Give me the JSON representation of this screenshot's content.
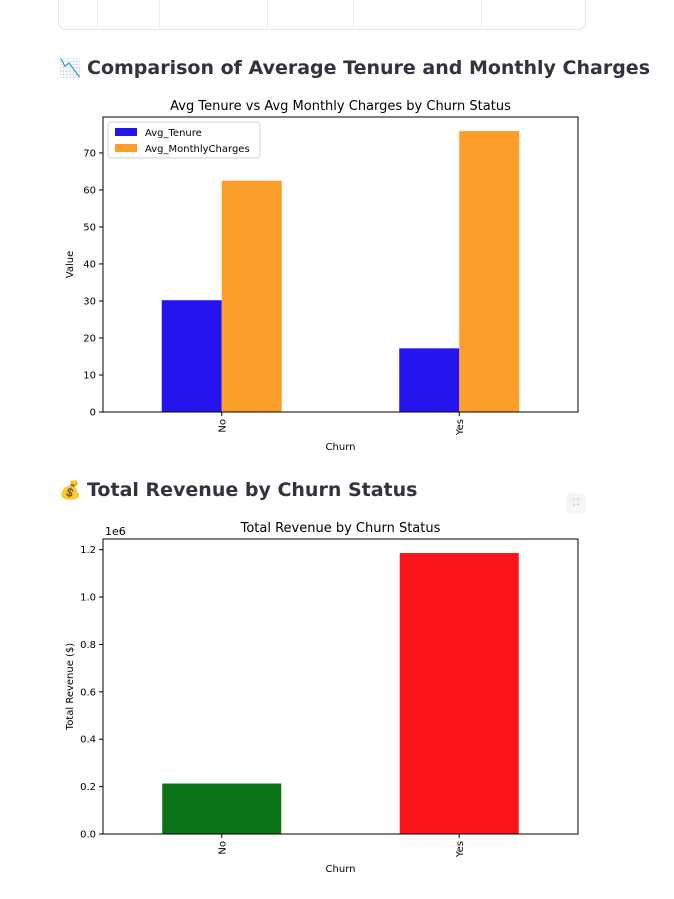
{
  "section1": {
    "emoji": "📉",
    "heading": "Comparison of Average Tenure and Monthly Charges"
  },
  "section2": {
    "emoji": "💰",
    "heading": "Total Revenue by Churn Status"
  },
  "fullscreen_icon": "fullscreen-icon",
  "chart_data": [
    {
      "type": "bar",
      "title": "Avg Tenure vs Avg Monthly Charges by Churn Status",
      "xlabel": "Churn",
      "ylabel": "Value",
      "categories": [
        "No",
        "Yes"
      ],
      "series": [
        {
          "name": "Avg_Tenure",
          "values": [
            30.2,
            17.2
          ],
          "color": "#2414ee"
        },
        {
          "name": "Avg_MonthlyCharges",
          "values": [
            62.5,
            75.9
          ],
          "color": "#fd9e2b"
        }
      ],
      "ylim": [
        0,
        79.7
      ],
      "yticks": [
        0,
        10,
        20,
        30,
        40,
        50,
        60,
        70
      ],
      "ytick_labels": [
        "0",
        "10",
        "20",
        "30",
        "40",
        "50",
        "60",
        "70"
      ],
      "legend": "top-left",
      "grid": false
    },
    {
      "type": "bar",
      "title": "Total Revenue by Churn Status",
      "xlabel": "Churn",
      "ylabel": "Total Revenue ($)",
      "offset_label": "1e6",
      "categories": [
        "No",
        "Yes"
      ],
      "values": [
        213000,
        1186000
      ],
      "colors": [
        "#0b7414",
        "#fb141b"
      ],
      "ylim": [
        0,
        1245000
      ],
      "yticks": [
        0,
        200000,
        400000,
        600000,
        800000,
        1000000,
        1200000
      ],
      "ytick_labels": [
        "0.0",
        "0.2",
        "0.4",
        "0.6",
        "0.8",
        "1.0",
        "1.2"
      ],
      "grid": false
    }
  ]
}
